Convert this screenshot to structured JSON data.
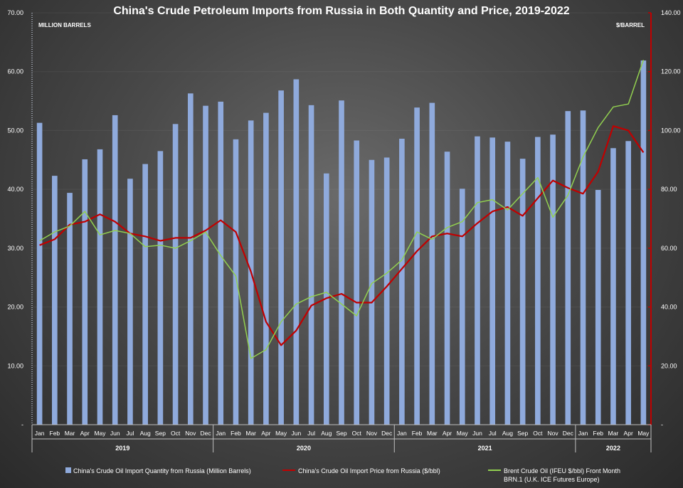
{
  "chart_data": {
    "type": "bar",
    "title": "China's Crude Petroleum Imports from Russia in Both Quantity and Price, 2019-2022",
    "left_axis": {
      "label": "MILLION BARRELS",
      "range": [
        0,
        70
      ],
      "ticks": [
        "-",
        "10.00",
        "20.00",
        "30.00",
        "40.00",
        "50.00",
        "60.00",
        "70.00"
      ]
    },
    "right_axis": {
      "label": "$/BARREL",
      "range": [
        0,
        140
      ],
      "ticks": [
        "-",
        "20.00",
        "40.00",
        "60.00",
        "80.00",
        "100.00",
        "120.00",
        "140.00"
      ],
      "color": "#c00000"
    },
    "categories": [
      "Jan",
      "Feb",
      "Mar",
      "Apr",
      "May",
      "Jun",
      "Jul",
      "Aug",
      "Sep",
      "Oct",
      "Nov",
      "Dec",
      "Jan",
      "Feb",
      "Mar",
      "Apr",
      "May",
      "Jun",
      "Jul",
      "Aug",
      "Sep",
      "Oct",
      "Nov",
      "Dec",
      "Jan",
      "Feb",
      "Mar",
      "Apr",
      "May",
      "Jun",
      "Jul",
      "Aug",
      "Sep",
      "Oct",
      "Nov",
      "Dec",
      "Jan",
      "Feb",
      "Mar",
      "Apr",
      "May"
    ],
    "year_groups": [
      {
        "label": "2019",
        "count": 12
      },
      {
        "label": "2020",
        "count": 12
      },
      {
        "label": "2021",
        "count": 12
      },
      {
        "label": "2022",
        "count": 5
      }
    ],
    "series": [
      {
        "name": "China's Crude Oil Import Quantity from Russia (Million Barrels)",
        "type": "bar",
        "axis": "left",
        "color": "#8faadc",
        "values": [
          51.3,
          42.3,
          39.4,
          45.1,
          46.8,
          52.6,
          41.8,
          44.3,
          46.5,
          51.1,
          56.3,
          54.2,
          54.9,
          48.5,
          51.7,
          53.0,
          56.8,
          58.7,
          54.3,
          42.7,
          55.1,
          48.3,
          45.0,
          45.4,
          48.6,
          53.9,
          54.7,
          46.4,
          40.1,
          49.0,
          48.8,
          48.1,
          45.2,
          48.9,
          49.3,
          53.3,
          53.4,
          39.9,
          47.0,
          48.2,
          61.9
        ]
      },
      {
        "name": "China's Crude Oil Import Price from Russia ($/bbl)",
        "type": "line",
        "axis": "right",
        "color": "#c00000",
        "values": [
          61,
          63,
          68,
          69,
          71.5,
          69,
          65,
          64,
          62.5,
          63.5,
          63.5,
          66,
          69.5,
          65.5,
          52,
          35,
          27,
          32,
          40.5,
          43,
          44.5,
          41.5,
          41.5,
          47,
          53,
          59,
          64,
          65,
          64,
          68.5,
          72.5,
          74,
          71,
          77,
          83,
          80.5,
          78.5,
          86,
          101.5,
          100,
          92.5
        ]
      },
      {
        "name": "Brent Crude Oil (IFEU $/bbl) Front Month BRN.1 (U.K. ICE Futures Europe)",
        "type": "line",
        "axis": "right",
        "color": "#92d050",
        "values": [
          62.5,
          65.5,
          67.5,
          72.5,
          64.5,
          66,
          65,
          60.5,
          61,
          60,
          62.5,
          65.5,
          57.5,
          50.5,
          22.5,
          25.5,
          35,
          41,
          43.5,
          45,
          41,
          37,
          48,
          51.5,
          56,
          65.5,
          63,
          67,
          69,
          75.5,
          76.5,
          73,
          78.5,
          84,
          70.5,
          78,
          91,
          101,
          108,
          109,
          124
        ]
      }
    ]
  }
}
